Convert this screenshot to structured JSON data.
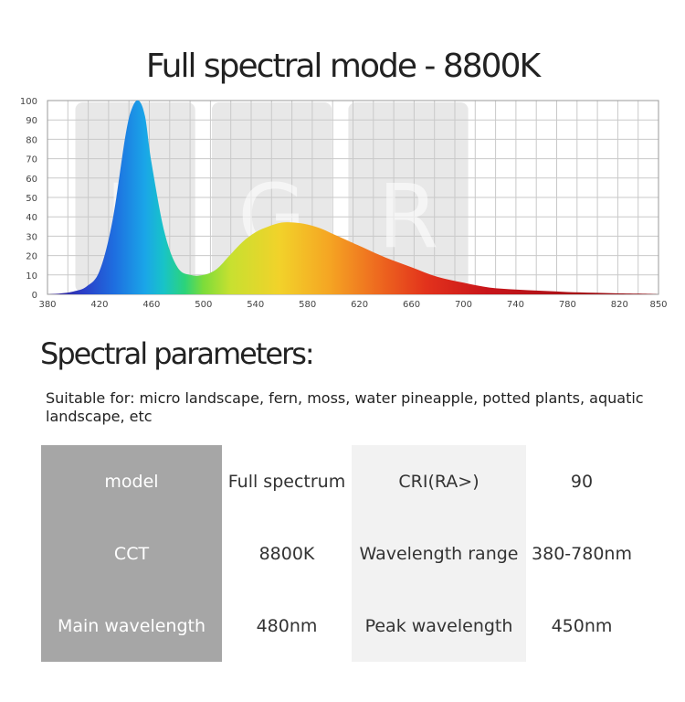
{
  "title": "Full spectral mode - 8800K",
  "chart_data": {
    "type": "area",
    "title": "Full spectral mode - 8800K",
    "xlabel": "",
    "ylabel": "",
    "xlim": [
      380,
      850
    ],
    "ylim": [
      0,
      100
    ],
    "x_ticks": [
      380,
      420,
      460,
      500,
      540,
      580,
      620,
      660,
      700,
      740,
      780,
      820,
      850
    ],
    "y_ticks": [
      0,
      10,
      20,
      30,
      40,
      50,
      60,
      70,
      80,
      90,
      100
    ],
    "grid": true,
    "band_labels": [
      "B",
      "G",
      "R"
    ],
    "series": [
      {
        "x": [
          380,
          390,
          400,
          410,
          420,
          430,
          440,
          445,
          450,
          455,
          460,
          470,
          480,
          490,
          500,
          510,
          520,
          530,
          540,
          550,
          560,
          570,
          580,
          590,
          600,
          610,
          620,
          640,
          660,
          680,
          700,
          720,
          740,
          760,
          780,
          800,
          820,
          840,
          850
        ],
        "values": [
          0,
          0.5,
          1.5,
          4,
          12,
          38,
          82,
          96,
          100,
          92,
          68,
          32,
          14,
          10,
          10,
          13,
          20,
          27,
          32,
          35,
          37,
          37,
          36,
          34,
          31,
          28,
          25,
          19,
          14,
          9,
          6,
          3.5,
          2.5,
          1.8,
          1.2,
          0.8,
          0.5,
          0.3,
          0
        ]
      }
    ]
  },
  "section_title": "Spectral parameters:",
  "suitable_text": "Suitable for: micro landscape, fern, moss, water pineapple, potted plants, aquatic landscape, etc",
  "params": {
    "model_label": "model",
    "model_value": "Full spectrum",
    "cri_label": "CRI(RA>)",
    "cri_value": "90",
    "cct_label": "CCT",
    "cct_value": "8800K",
    "range_label": "Wavelength range",
    "range_value": "380-780nm",
    "main_label": "Main wavelength",
    "main_value": "480nm",
    "peak_label": "Peak wavelength",
    "peak_value": "450nm"
  }
}
